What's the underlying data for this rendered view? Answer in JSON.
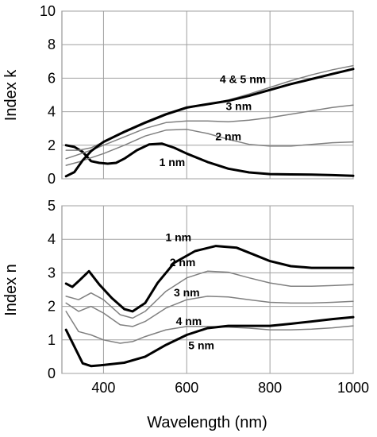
{
  "chart_data": [
    {
      "type": "line",
      "xlabel": "",
      "ylabel": "Index k",
      "xlim": [
        300,
        1000
      ],
      "ylim": [
        0,
        10
      ],
      "xticks": [
        400,
        600,
        800,
        1000
      ],
      "yticks": [
        0,
        2,
        4,
        6,
        8,
        10
      ],
      "grid": true,
      "series": [
        {
          "name": "1 nm",
          "color": "#000000",
          "width": 3,
          "x": [
            310,
            330,
            350,
            370,
            390,
            410,
            430,
            450,
            480,
            510,
            540,
            570,
            600,
            650,
            700,
            750,
            800,
            850,
            900,
            950,
            1000
          ],
          "y": [
            2.0,
            1.9,
            1.6,
            1.05,
            0.95,
            0.9,
            0.95,
            1.2,
            1.7,
            2.05,
            2.1,
            1.85,
            1.5,
            1.0,
            0.6,
            0.38,
            0.28,
            0.26,
            0.25,
            0.22,
            0.18
          ]
        },
        {
          "name": "2 nm",
          "color": "#808080",
          "width": 1.5,
          "x": [
            310,
            340,
            370,
            400,
            450,
            500,
            550,
            600,
            650,
            700,
            750,
            800,
            850,
            900,
            950,
            1000
          ],
          "y": [
            0.8,
            1.0,
            1.25,
            1.5,
            2.0,
            2.55,
            2.9,
            2.95,
            2.7,
            2.35,
            2.05,
            1.95,
            1.95,
            2.05,
            2.15,
            2.2
          ]
        },
        {
          "name": "3 nm",
          "color": "#808080",
          "width": 1.5,
          "x": [
            310,
            340,
            370,
            400,
            450,
            500,
            550,
            600,
            650,
            700,
            750,
            800,
            850,
            900,
            950,
            1000
          ],
          "y": [
            1.2,
            1.45,
            1.7,
            2.0,
            2.5,
            3.0,
            3.35,
            3.45,
            3.45,
            3.4,
            3.5,
            3.65,
            3.85,
            4.05,
            4.25,
            4.4
          ]
        },
        {
          "name": "4 & 5 nm",
          "color": "#808080",
          "width": 1.5,
          "x": [
            310,
            340,
            370,
            400,
            450,
            500,
            550,
            600,
            650,
            700,
            750,
            800,
            850,
            900,
            950,
            1000
          ],
          "y": [
            1.7,
            1.7,
            1.85,
            2.2,
            2.75,
            3.3,
            3.8,
            4.2,
            4.45,
            4.7,
            5.05,
            5.45,
            5.85,
            6.2,
            6.5,
            6.75
          ]
        },
        {
          "name": "4 & 5 nm",
          "color": "#000000",
          "width": 3,
          "x": [
            310,
            330,
            350,
            370,
            400,
            450,
            500,
            550,
            600,
            650,
            700,
            750,
            800,
            850,
            900,
            950,
            1000
          ],
          "y": [
            0.15,
            0.4,
            1.1,
            1.65,
            2.2,
            2.8,
            3.35,
            3.85,
            4.25,
            4.45,
            4.65,
            4.95,
            5.3,
            5.65,
            5.95,
            6.25,
            6.55
          ]
        }
      ],
      "annotations": [
        {
          "text": "4 & 5 nm",
          "x": 735,
          "y": 5.7
        },
        {
          "text": "3 nm",
          "x": 725,
          "y": 4.1
        },
        {
          "text": "2 nm",
          "x": 700,
          "y": 2.3
        },
        {
          "text": "1 nm",
          "x": 565,
          "y": 0.75
        }
      ]
    },
    {
      "type": "line",
      "xlabel": "Wavelength (nm)",
      "ylabel": "Index n",
      "xlim": [
        300,
        1000
      ],
      "ylim": [
        0,
        5
      ],
      "xticks": [
        400,
        600,
        800,
        1000
      ],
      "yticks": [
        0,
        1,
        2,
        3,
        4,
        5
      ],
      "grid": true,
      "series": [
        {
          "name": "1 nm",
          "color": "#000000",
          "width": 3,
          "x": [
            310,
            325,
            340,
            365,
            390,
            420,
            450,
            470,
            500,
            530,
            570,
            620,
            670,
            720,
            760,
            800,
            850,
            900,
            950,
            1000
          ],
          "y": [
            2.68,
            2.58,
            2.75,
            3.05,
            2.65,
            2.25,
            1.92,
            1.85,
            2.1,
            2.7,
            3.3,
            3.65,
            3.8,
            3.75,
            3.55,
            3.35,
            3.2,
            3.15,
            3.15,
            3.15
          ]
        },
        {
          "name": "2 nm",
          "color": "#808080",
          "width": 1.5,
          "x": [
            310,
            340,
            370,
            400,
            440,
            470,
            500,
            550,
            600,
            650,
            700,
            750,
            800,
            850,
            900,
            950,
            1000
          ],
          "y": [
            2.3,
            2.2,
            2.4,
            2.2,
            1.75,
            1.65,
            1.85,
            2.45,
            2.85,
            3.05,
            3.02,
            2.85,
            2.7,
            2.6,
            2.6,
            2.62,
            2.65
          ]
        },
        {
          "name": "3 nm",
          "color": "#808080",
          "width": 1.5,
          "x": [
            310,
            340,
            370,
            400,
            440,
            470,
            500,
            550,
            600,
            650,
            700,
            750,
            800,
            850,
            900,
            950,
            1000
          ],
          "y": [
            2.1,
            1.85,
            2.0,
            1.8,
            1.45,
            1.4,
            1.55,
            1.95,
            2.2,
            2.3,
            2.28,
            2.2,
            2.12,
            2.1,
            2.1,
            2.12,
            2.15
          ]
        },
        {
          "name": "4 nm",
          "color": "#808080",
          "width": 1.5,
          "x": [
            310,
            340,
            370,
            400,
            440,
            470,
            500,
            550,
            600,
            650,
            700,
            750,
            800,
            850,
            900,
            950,
            1000
          ],
          "y": [
            1.85,
            1.25,
            1.15,
            1.0,
            0.9,
            0.95,
            1.1,
            1.3,
            1.4,
            1.4,
            1.38,
            1.35,
            1.3,
            1.3,
            1.32,
            1.36,
            1.42
          ]
        },
        {
          "name": "5 nm",
          "color": "#000000",
          "width": 3,
          "x": [
            310,
            330,
            350,
            370,
            400,
            450,
            500,
            550,
            600,
            650,
            700,
            750,
            800,
            850,
            900,
            950,
            1000
          ],
          "y": [
            1.3,
            0.8,
            0.3,
            0.22,
            0.25,
            0.32,
            0.5,
            0.85,
            1.15,
            1.35,
            1.42,
            1.42,
            1.42,
            1.48,
            1.55,
            1.62,
            1.68
          ]
        }
      ],
      "annotations": [
        {
          "text": "1 nm",
          "x": 580,
          "y": 3.95
        },
        {
          "text": "2 nm",
          "x": 590,
          "y": 3.2
        },
        {
          "text": "3 nm",
          "x": 600,
          "y": 2.3
        },
        {
          "text": "4 nm",
          "x": 605,
          "y": 1.45
        },
        {
          "text": "5 nm",
          "x": 635,
          "y": 0.72
        }
      ]
    }
  ]
}
